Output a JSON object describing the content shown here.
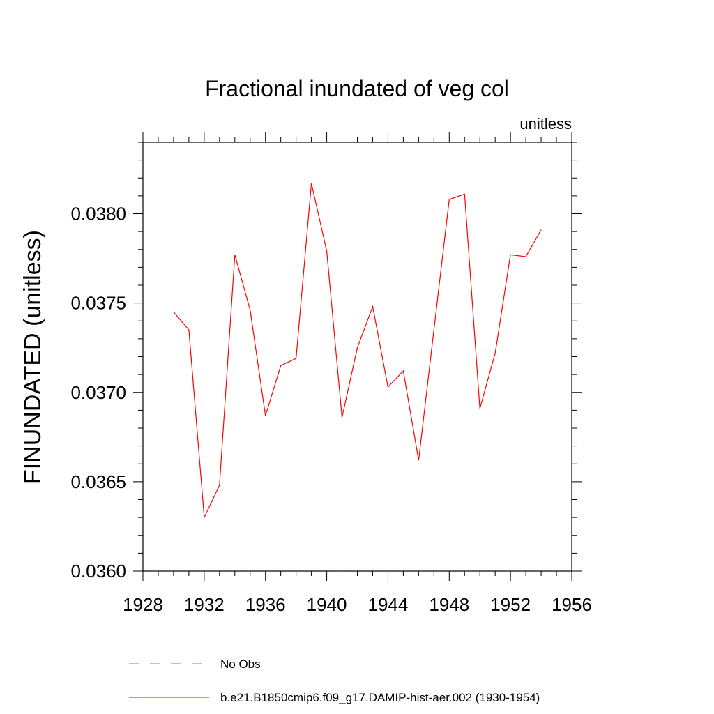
{
  "chart_data": {
    "type": "line",
    "title": "Fractional inundated of veg col",
    "units": "unitless",
    "xlabel": "",
    "ylabel": "FINUNDATED  (unitless)",
    "xlim": [
      1928,
      1956
    ],
    "ylim": [
      0.036,
      0.0384
    ],
    "x_ticks": [
      "1928",
      "1932",
      "1936",
      "1940",
      "1944",
      "1948",
      "1952",
      "1956"
    ],
    "y_ticks": [
      "0.0360",
      "0.0365",
      "0.0370",
      "0.0375",
      "0.0380"
    ],
    "grid": false,
    "legend_position": "bottom",
    "legend": [
      {
        "label": "No Obs",
        "color": "#7b7bd6",
        "style": "dashed"
      },
      {
        "label": "b.e21.B1850cmip6.f09_g17.DAMIP-hist-aer.002 (1930-1954)",
        "color": "#ff0000",
        "style": "solid"
      }
    ],
    "series": [
      {
        "name": "b.e21.B1850cmip6.f09_g17.DAMIP-hist-aer.002 (1930-1954)",
        "color": "#ff0000",
        "x": [
          1930,
          1931,
          1932,
          1933,
          1934,
          1935,
          1936,
          1937,
          1938,
          1939,
          1940,
          1941,
          1942,
          1943,
          1944,
          1945,
          1946,
          1947,
          1948,
          1949,
          1950,
          1951,
          1952,
          1953,
          1954
        ],
        "y": [
          0.03745,
          0.03735,
          0.0363,
          0.03648,
          0.03777,
          0.03746,
          0.03687,
          0.03715,
          0.03719,
          0.03817,
          0.03779,
          0.03686,
          0.03725,
          0.03748,
          0.03703,
          0.03712,
          0.03662,
          0.03735,
          0.03808,
          0.03811,
          0.03691,
          0.03722,
          0.03777,
          0.03776,
          0.03791
        ]
      }
    ]
  }
}
